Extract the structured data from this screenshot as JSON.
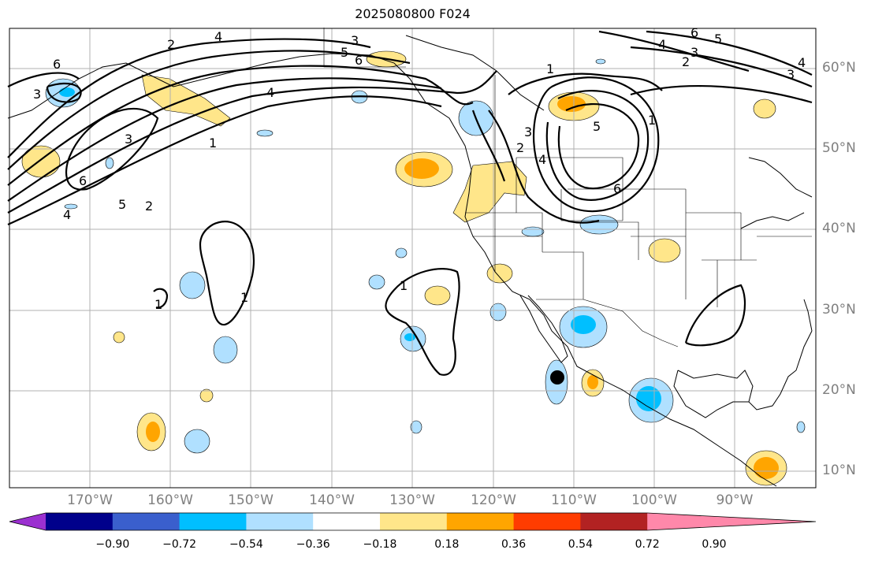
{
  "title": "2025080800 F024",
  "lat_labels": [
    "60°N",
    "50°N",
    "40°N",
    "30°N",
    "20°N",
    "10°N"
  ],
  "lon_labels": [
    "170°W",
    "160°W",
    "150°W",
    "140°W",
    "130°W",
    "120°W",
    "110°W",
    "100°W",
    "90°W"
  ],
  "colorbar": {
    "labels": [
      "−0.90",
      "−0.72",
      "−0.54",
      "−0.36",
      "−0.18",
      "0.18",
      "0.36",
      "0.54",
      "0.72",
      "0.90"
    ],
    "colors": [
      "#9b30d0",
      "#00008b",
      "#3a5fcd",
      "#00bfff",
      "#b0e0ff",
      "#ffffff",
      "#ffe68a",
      "#ffa500",
      "#ff3c00",
      "#b22222",
      "#ff88aa"
    ]
  },
  "contour_labels": [
    "1",
    "2",
    "3",
    "4",
    "5",
    "6"
  ],
  "colors": {
    "light_blue": "#b0e0ff",
    "blue": "#00bfff",
    "light_yellow": "#ffe68a",
    "orange": "#ffa500",
    "grid": "#b0b0b0"
  }
}
